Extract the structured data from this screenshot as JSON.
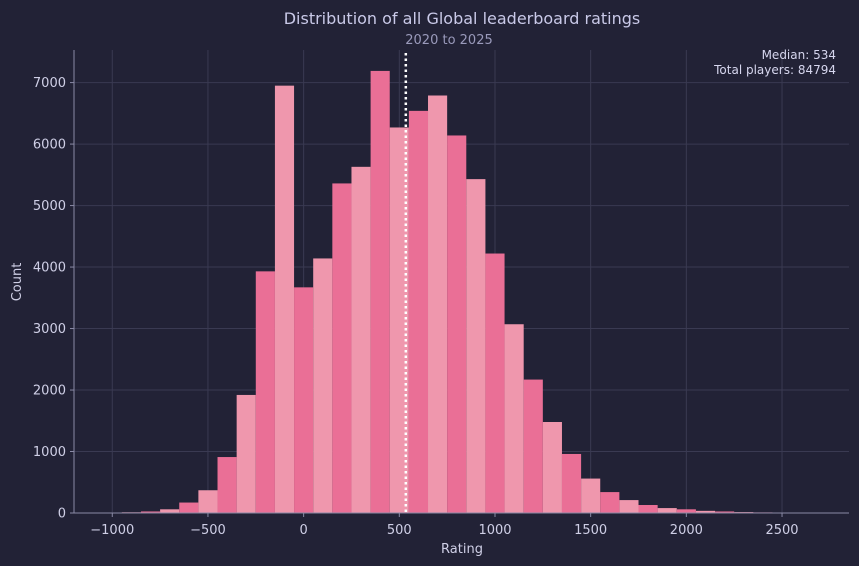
{
  "chart_data": {
    "type": "bar",
    "title": "Distribution of all Global leaderboard ratings",
    "subtitle": "2020 to 2025",
    "xlabel": "Rating",
    "ylabel": "Count",
    "xlim": [
      -1200,
      2850
    ],
    "ylim": [
      0,
      7530
    ],
    "x_ticks": [
      -1000,
      -500,
      0,
      500,
      1000,
      1500,
      2000,
      2500
    ],
    "x_tick_labels": [
      "−1000",
      "−500",
      "0",
      "500",
      "1000",
      "1500",
      "2000",
      "2500"
    ],
    "y_ticks": [
      0,
      1000,
      2000,
      3000,
      4000,
      5000,
      6000,
      7000
    ],
    "y_tick_labels": [
      "0",
      "1000",
      "2000",
      "3000",
      "4000",
      "5000",
      "6000",
      "7000"
    ],
    "grid": true,
    "bin_width": 100,
    "bins": [
      {
        "start": -1050,
        "count": 5
      },
      {
        "start": -950,
        "count": 12
      },
      {
        "start": -850,
        "count": 25
      },
      {
        "start": -750,
        "count": 60
      },
      {
        "start": -650,
        "count": 170
      },
      {
        "start": -550,
        "count": 370
      },
      {
        "start": -450,
        "count": 910
      },
      {
        "start": -350,
        "count": 1920
      },
      {
        "start": -250,
        "count": 3930
      },
      {
        "start": -150,
        "count": 6950
      },
      {
        "start": -50,
        "count": 3670
      },
      {
        "start": 50,
        "count": 4140
      },
      {
        "start": 150,
        "count": 5360
      },
      {
        "start": 250,
        "count": 5630
      },
      {
        "start": 350,
        "count": 7190
      },
      {
        "start": 450,
        "count": 6270
      },
      {
        "start": 550,
        "count": 6540
      },
      {
        "start": 650,
        "count": 6790
      },
      {
        "start": 750,
        "count": 6140
      },
      {
        "start": 850,
        "count": 5430
      },
      {
        "start": 950,
        "count": 4220
      },
      {
        "start": 1050,
        "count": 3070
      },
      {
        "start": 1150,
        "count": 2170
      },
      {
        "start": 1250,
        "count": 1480
      },
      {
        "start": 1350,
        "count": 960
      },
      {
        "start": 1450,
        "count": 560
      },
      {
        "start": 1550,
        "count": 340
      },
      {
        "start": 1650,
        "count": 210
      },
      {
        "start": 1750,
        "count": 130
      },
      {
        "start": 1850,
        "count": 80
      },
      {
        "start": 1950,
        "count": 60
      },
      {
        "start": 2050,
        "count": 35
      },
      {
        "start": 2150,
        "count": 25
      },
      {
        "start": 2250,
        "count": 15
      },
      {
        "start": 2350,
        "count": 10
      },
      {
        "start": 2450,
        "count": 6
      }
    ],
    "median": 534,
    "annotations": {
      "median_text": "Median: 534",
      "total_text": "Total players: 84794"
    },
    "colors": {
      "background": "#222236",
      "bar_dark": "#ea6f96",
      "bar_light": "#ef97ad",
      "median_line": "#ffffff",
      "grid": "#3a3a52"
    }
  }
}
